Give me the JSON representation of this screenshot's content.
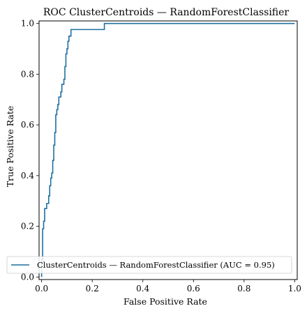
{
  "chart_data": {
    "type": "line",
    "title": "ROC ClusterCentroids — RandomForestClassifier",
    "xlabel": "False Positive Rate",
    "ylabel": "True Positive Rate",
    "xlim": [
      -0.01,
      1.01
    ],
    "ylim": [
      -0.01,
      1.01
    ],
    "xticks": [
      0.0,
      0.2,
      0.4,
      0.6,
      0.8,
      1.0
    ],
    "yticks": [
      0.0,
      0.2,
      0.4,
      0.6,
      0.8,
      1.0
    ],
    "xtick_labels": [
      "0.0",
      "0.2",
      "0.4",
      "0.6",
      "0.8",
      "1.0"
    ],
    "ytick_labels": [
      "0.0",
      "0.2",
      "0.4",
      "0.6",
      "0.8",
      "1.0"
    ],
    "grid": false,
    "legend_position": "lower-right",
    "color": "#1f6f9f",
    "series": [
      {
        "name": "ClusterCentroids — RandomForestClassifier (AUC = 0.95)",
        "x": [
          0.0,
          0.0,
          0.004,
          0.004,
          0.008,
          0.008,
          0.012,
          0.012,
          0.02,
          0.02,
          0.028,
          0.028,
          0.032,
          0.032,
          0.036,
          0.036,
          0.04,
          0.04,
          0.044,
          0.044,
          0.048,
          0.048,
          0.052,
          0.052,
          0.056,
          0.056,
          0.06,
          0.06,
          0.064,
          0.064,
          0.068,
          0.068,
          0.072,
          0.072,
          0.076,
          0.076,
          0.08,
          0.08,
          0.084,
          0.084,
          0.088,
          0.088,
          0.092,
          0.092,
          0.096,
          0.096,
          0.1,
          0.1,
          0.104,
          0.104,
          0.108,
          0.108,
          0.112,
          0.112,
          0.116,
          0.116,
          0.248,
          0.248,
          1.0
        ],
        "y": [
          0.0,
          0.07,
          0.07,
          0.19,
          0.19,
          0.22,
          0.22,
          0.27,
          0.27,
          0.29,
          0.29,
          0.32,
          0.32,
          0.36,
          0.36,
          0.39,
          0.39,
          0.41,
          0.41,
          0.46,
          0.46,
          0.52,
          0.52,
          0.57,
          0.57,
          0.64,
          0.64,
          0.66,
          0.66,
          0.68,
          0.68,
          0.71,
          0.71,
          0.71,
          0.71,
          0.73,
          0.73,
          0.76,
          0.76,
          0.76,
          0.76,
          0.78,
          0.78,
          0.83,
          0.83,
          0.88,
          0.88,
          0.9,
          0.9,
          0.93,
          0.93,
          0.95,
          0.95,
          0.95,
          0.95,
          0.976,
          0.976,
          1.0,
          1.0
        ]
      }
    ]
  }
}
